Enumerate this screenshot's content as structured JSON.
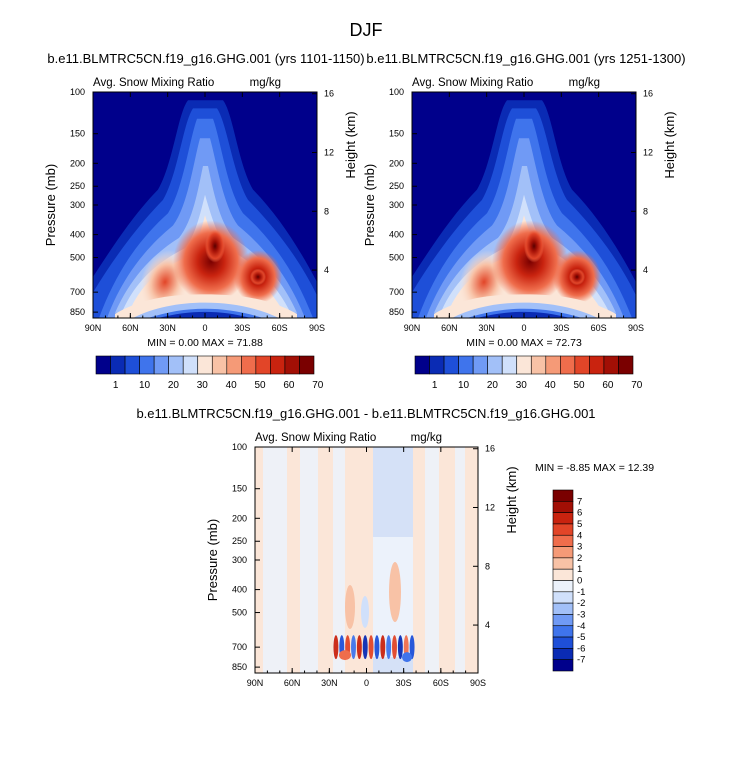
{
  "page_title": "DJF",
  "chart_data": [
    {
      "type": "heatmap",
      "title": "b.e11.BLMTRC5CN.f19_g16.GHG.001 (yrs 1101-1150)",
      "left_label": "Avg. Snow Mixing Ratio",
      "right_label": "mg/kg",
      "ylabel": "Pressure (mb)",
      "ylabel_right": "Height (km)",
      "x_ticks": [
        "90N",
        "60N",
        "30N",
        "0",
        "30S",
        "60S",
        "90S"
      ],
      "y_ticks": [
        "100",
        "150",
        "200",
        "250",
        "300",
        "400",
        "500",
        "700",
        "850"
      ],
      "height_ticks": [
        "16",
        "12",
        "8",
        "4"
      ],
      "min_max": "MIN =   0.00  MAX =  71.88",
      "min": 0.0,
      "max": 71.88,
      "colorbar_labels": [
        "1",
        "10",
        "20",
        "30",
        "40",
        "50",
        "60",
        "70"
      ],
      "colorbar_colors": [
        "#00008b",
        "#0a2bb4",
        "#1e4fd8",
        "#3f74ec",
        "#709af5",
        "#a2c0f8",
        "#d0e0fb",
        "#fbe6d8",
        "#f8c2a6",
        "#f59a77",
        "#ef6d4c",
        "#e24528",
        "#c9230f",
        "#a20f05",
        "#7a0000"
      ]
    },
    {
      "type": "heatmap",
      "title": "b.e11.BLMTRC5CN.f19_g16.GHG.001 (yrs 1251-1300)",
      "left_label": "Avg. Snow Mixing Ratio",
      "right_label": "mg/kg",
      "ylabel": "Pressure (mb)",
      "ylabel_right": "Height (km)",
      "x_ticks": [
        "90N",
        "60N",
        "30N",
        "0",
        "30S",
        "60S",
        "90S"
      ],
      "y_ticks": [
        "100",
        "150",
        "200",
        "250",
        "300",
        "400",
        "500",
        "700",
        "850"
      ],
      "height_ticks": [
        "16",
        "12",
        "8",
        "4"
      ],
      "min_max": "MIN =   0.00  MAX =  72.73",
      "min": 0.0,
      "max": 72.73,
      "colorbar_labels": [
        "1",
        "10",
        "20",
        "30",
        "40",
        "50",
        "60",
        "70"
      ],
      "colorbar_colors": [
        "#00008b",
        "#0a2bb4",
        "#1e4fd8",
        "#3f74ec",
        "#709af5",
        "#a2c0f8",
        "#d0e0fb",
        "#fbe6d8",
        "#f8c2a6",
        "#f59a77",
        "#ef6d4c",
        "#e24528",
        "#c9230f",
        "#a20f05",
        "#7a0000"
      ]
    },
    {
      "type": "heatmap",
      "title": "b.e11.BLMTRC5CN.f19_g16.GHG.001 - b.e11.BLMTRC5CN.f19_g16.GHG.001",
      "left_label": "Avg. Snow Mixing Ratio",
      "right_label": "mg/kg",
      "ylabel": "Pressure (mb)",
      "ylabel_right": "Height (km)",
      "x_ticks": [
        "90N",
        "60N",
        "30N",
        "0",
        "30S",
        "60S",
        "90S"
      ],
      "y_ticks": [
        "100",
        "150",
        "200",
        "250",
        "300",
        "400",
        "500",
        "700",
        "850"
      ],
      "height_ticks": [
        "16",
        "12",
        "8",
        "4"
      ],
      "min_max": "MIN =  -8.85  MAX =  12.39",
      "min": -8.85,
      "max": 12.39,
      "colorbar_labels": [
        "7",
        "6",
        "5",
        "4",
        "3",
        "2",
        "1",
        "0",
        "-1",
        "-2",
        "-3",
        "-4",
        "-5",
        "-6",
        "-7"
      ],
      "colorbar_colors": [
        "#7a0000",
        "#a20f05",
        "#c9230f",
        "#e24528",
        "#ef6d4c",
        "#f59a77",
        "#f8c2a6",
        "#fbe6d8",
        "#ecf2fb",
        "#d0e0fb",
        "#a2c0f8",
        "#709af5",
        "#3f74ec",
        "#1e4fd8",
        "#0a2bb4",
        "#00008b"
      ]
    }
  ]
}
